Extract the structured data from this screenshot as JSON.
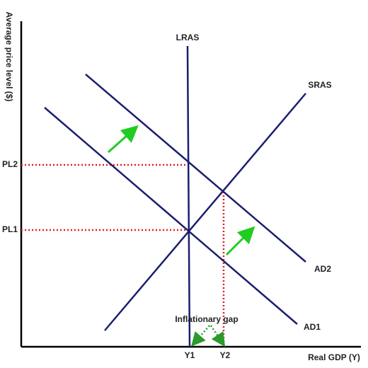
{
  "axes": {
    "y_label": "Average price level ($)",
    "x_label": "Real GDP (Y)"
  },
  "curves": {
    "lras": "LRAS",
    "sras": "SRAS",
    "ad1": "AD1",
    "ad2": "AD2"
  },
  "price_levels": [
    "PL2",
    "PL1"
  ],
  "output_levels": [
    "Y1",
    "Y2"
  ],
  "annotation": "Inflationary gap"
}
